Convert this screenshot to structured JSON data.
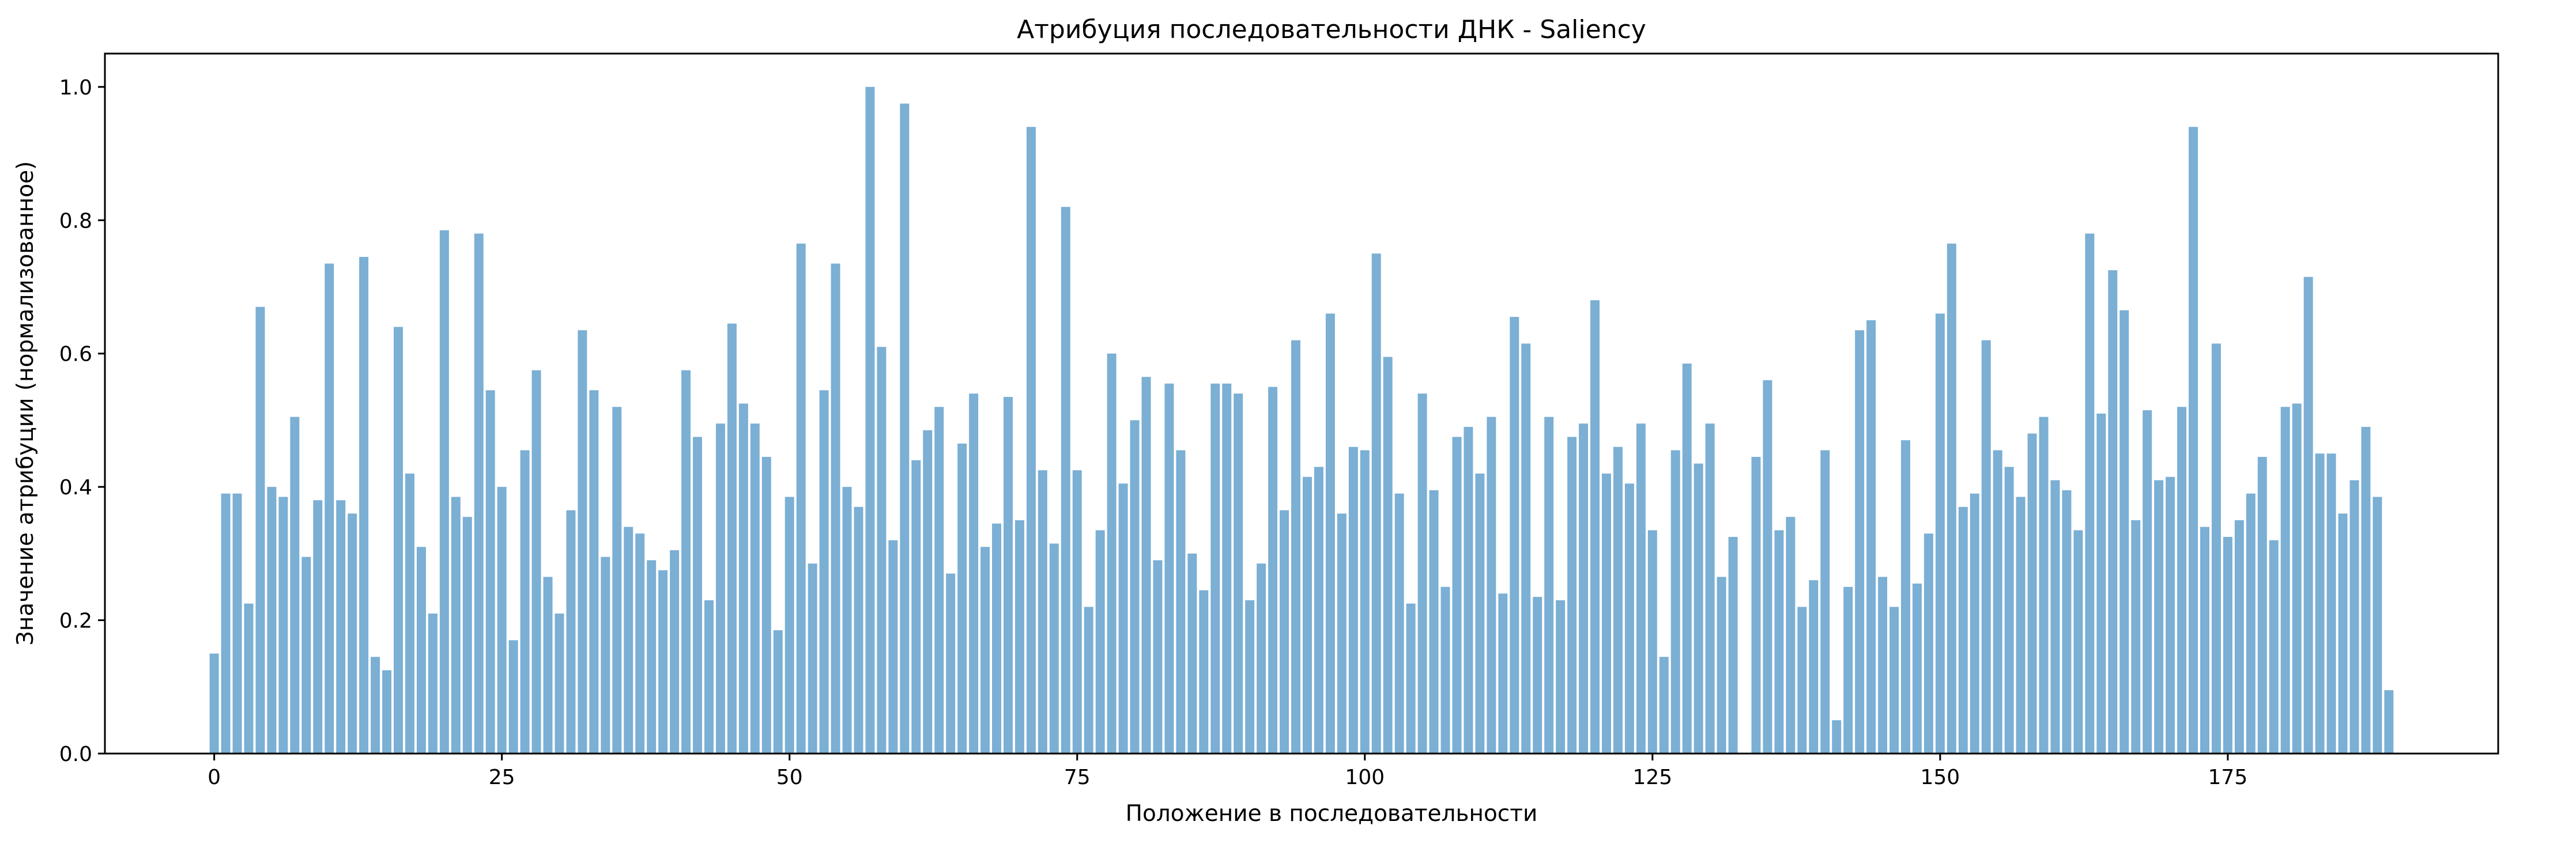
{
  "chart_data": {
    "type": "bar",
    "title": "Атрибуция последовательности ДНК - Saliency",
    "xlabel": "Положение в последовательности",
    "ylabel": "Значение атрибуции (нормализованное)",
    "xlim": [
      -9.5,
      198.5
    ],
    "ylim": [
      0,
      1.05
    ],
    "xticks": [
      0,
      25,
      50,
      75,
      100,
      125,
      150,
      175
    ],
    "yticks": [
      "0.0",
      "0.2",
      "0.4",
      "0.6",
      "0.8",
      "1.0"
    ],
    "grid": false,
    "bar_color": "#7bafd4",
    "x": [
      0,
      1,
      2,
      3,
      4,
      5,
      6,
      7,
      8,
      9,
      10,
      11,
      12,
      13,
      14,
      15,
      16,
      17,
      18,
      19,
      20,
      21,
      22,
      23,
      24,
      25,
      26,
      27,
      28,
      29,
      30,
      31,
      32,
      33,
      34,
      35,
      36,
      37,
      38,
      39,
      40,
      41,
      42,
      43,
      44,
      45,
      46,
      47,
      48,
      49,
      50,
      51,
      52,
      53,
      54,
      55,
      56,
      57,
      58,
      59,
      60,
      61,
      62,
      63,
      64,
      65,
      66,
      67,
      68,
      69,
      70,
      71,
      72,
      73,
      74,
      75,
      76,
      77,
      78,
      79,
      80,
      81,
      82,
      83,
      84,
      85,
      86,
      87,
      88,
      89,
      90,
      91,
      92,
      93,
      94,
      95,
      96,
      97,
      98,
      99,
      100,
      101,
      102,
      103,
      104,
      105,
      106,
      107,
      108,
      109,
      110,
      111,
      112,
      113,
      114,
      115,
      116,
      117,
      118,
      119,
      120,
      121,
      122,
      123,
      124,
      125,
      126,
      127,
      128,
      129,
      130,
      131,
      132,
      133,
      134,
      135,
      136,
      137,
      138,
      139,
      140,
      141,
      142,
      143,
      144,
      145,
      146,
      147,
      148,
      149,
      150,
      151,
      152,
      153,
      154,
      155,
      156,
      157,
      158,
      159,
      160,
      161,
      162,
      163,
      164,
      165,
      166,
      167,
      168,
      169,
      170,
      171,
      172,
      173,
      174,
      175,
      176,
      177,
      178,
      179,
      180,
      181,
      182,
      183,
      184,
      185,
      186,
      187,
      188,
      189
    ],
    "values": [
      0.15,
      0.39,
      0.39,
      0.225,
      0.67,
      0.4,
      0.385,
      0.505,
      0.295,
      0.38,
      0.735,
      0.38,
      0.36,
      0.745,
      0.145,
      0.125,
      0.64,
      0.42,
      0.31,
      0.21,
      0.785,
      0.385,
      0.355,
      0.78,
      0.545,
      0.4,
      0.17,
      0.455,
      0.575,
      0.265,
      0.21,
      0.365,
      0.635,
      0.545,
      0.295,
      0.52,
      0.34,
      0.33,
      0.29,
      0.275,
      0.305,
      0.575,
      0.475,
      0.23,
      0.495,
      0.645,
      0.525,
      0.495,
      0.445,
      0.185,
      0.385,
      0.765,
      0.285,
      0.545,
      0.735,
      0.4,
      0.37,
      1.0,
      0.61,
      0.32,
      0.975,
      0.44,
      0.485,
      0.52,
      0.27,
      0.465,
      0.54,
      0.31,
      0.345,
      0.535,
      0.35,
      0.94,
      0.425,
      0.315,
      0.82,
      0.425,
      0.22,
      0.335,
      0.6,
      0.405,
      0.5,
      0.565,
      0.29,
      0.555,
      0.455,
      0.3,
      0.245,
      0.555,
      0.555,
      0.54,
      0.23,
      0.285,
      0.55,
      0.365,
      0.62,
      0.415,
      0.43,
      0.66,
      0.36,
      0.46,
      0.455,
      0.75,
      0.595,
      0.39,
      0.225,
      0.54,
      0.395,
      0.25,
      0.475,
      0.49,
      0.42,
      0.505,
      0.24,
      0.655,
      0.615,
      0.235,
      0.505,
      0.23,
      0.475,
      0.495,
      0.68,
      0.42,
      0.46,
      0.405,
      0.495,
      0.335,
      0.145,
      0.455,
      0.585,
      0.435,
      0.495,
      0.265,
      0.325,
      0.0,
      0.445,
      0.56,
      0.335,
      0.355,
      0.22,
      0.26,
      0.455,
      0.05,
      0.25,
      0.635,
      0.65,
      0.265,
      0.22,
      0.47,
      0.255,
      0.33,
      0.66,
      0.765,
      0.37,
      0.39,
      0.62,
      0.455,
      0.43,
      0.385,
      0.48,
      0.505,
      0.41,
      0.395,
      0.335,
      0.78,
      0.51,
      0.725,
      0.665,
      0.35,
      0.515,
      0.41,
      0.415,
      0.52,
      0.94,
      0.34,
      0.615,
      0.325,
      0.35,
      0.39,
      0.445,
      0.32,
      0.52,
      0.525,
      0.715,
      0.45,
      0.45,
      0.36,
      0.41,
      0.49,
      0.385,
      0.095
    ]
  }
}
